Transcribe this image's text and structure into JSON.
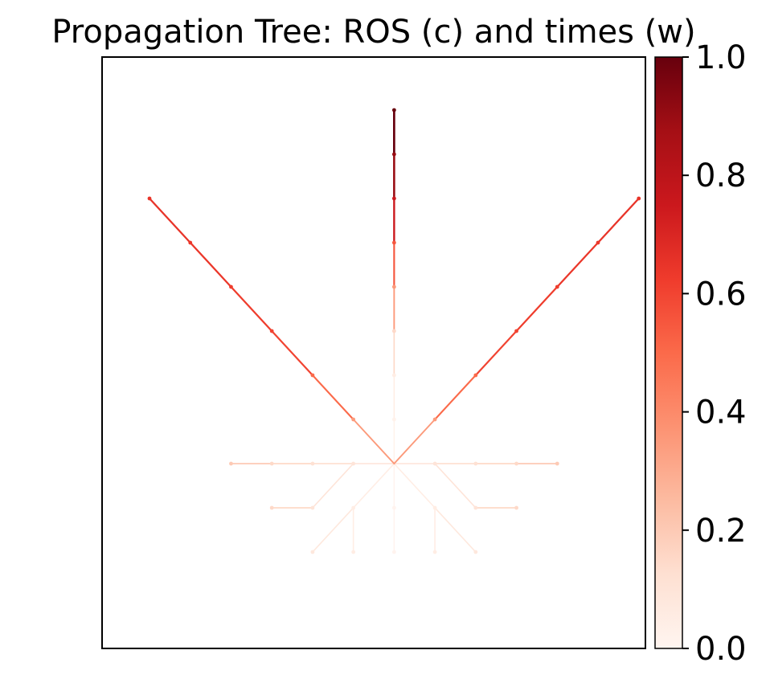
{
  "chart_data": {
    "type": "line",
    "title": "Propagation Tree: ROS (c) and times (w)",
    "xlabel": "",
    "ylabel": "",
    "xlim": [
      -1,
      13
    ],
    "ylim": [
      -1,
      13
    ],
    "axis_ticks_visible": false,
    "grid": false,
    "colormap": "Reds",
    "colorbar": {
      "range": [
        0,
        1
      ],
      "ticks": [
        0.0,
        0.2,
        0.4,
        0.6,
        0.8,
        1.0
      ],
      "tick_labels": [
        "0.0",
        "0.2",
        "0.4",
        "0.6",
        "0.8",
        "1.0"
      ],
      "colormap_stops": [
        "#fff5f0",
        "#fee0d2",
        "#fcbba1",
        "#fc9272",
        "#fb6a4a",
        "#ef3b2c",
        "#cb181d",
        "#a50f15",
        "#67000d"
      ]
    },
    "description": "Directed propagation edges radiating from an ignition node at grid point (6,4); each edge is colored by its ROS value on the Reds colormap.",
    "ignition_node": [
      6,
      4
    ],
    "edges": [
      {
        "x0": 6,
        "y0": 4,
        "x1": 6,
        "y1": 3,
        "c": 0.01
      },
      {
        "x0": 6,
        "y0": 3,
        "x1": 6,
        "y1": 2,
        "c": 0.01
      },
      {
        "x0": 6,
        "y0": 4,
        "x1": 5,
        "y1": 3,
        "c": 0.05
      },
      {
        "x0": 5,
        "y0": 3,
        "x1": 4,
        "y1": 2,
        "c": 0.08
      },
      {
        "x0": 6,
        "y0": 4,
        "x1": 7,
        "y1": 3,
        "c": 0.05
      },
      {
        "x0": 7,
        "y0": 3,
        "x1": 8,
        "y1": 2,
        "c": 0.08
      },
      {
        "x0": 5,
        "y0": 3,
        "x1": 5,
        "y1": 2,
        "c": 0.05
      },
      {
        "x0": 7,
        "y0": 3,
        "x1": 7,
        "y1": 2,
        "c": 0.05
      },
      {
        "x0": 6,
        "y0": 4,
        "x1": 5,
        "y1": 4,
        "c": 0.1
      },
      {
        "x0": 5,
        "y0": 4,
        "x1": 4,
        "y1": 4,
        "c": 0.12
      },
      {
        "x0": 4,
        "y0": 4,
        "x1": 3,
        "y1": 4,
        "c": 0.15
      },
      {
        "x0": 3,
        "y0": 4,
        "x1": 2,
        "y1": 4,
        "c": 0.2
      },
      {
        "x0": 6,
        "y0": 4,
        "x1": 7,
        "y1": 4,
        "c": 0.1
      },
      {
        "x0": 7,
        "y0": 4,
        "x1": 8,
        "y1": 4,
        "c": 0.12
      },
      {
        "x0": 8,
        "y0": 4,
        "x1": 9,
        "y1": 4,
        "c": 0.15
      },
      {
        "x0": 9,
        "y0": 4,
        "x1": 10,
        "y1": 4,
        "c": 0.2
      },
      {
        "x0": 5,
        "y0": 4,
        "x1": 4,
        "y1": 3,
        "c": 0.1
      },
      {
        "x0": 4,
        "y0": 3,
        "x1": 3,
        "y1": 3,
        "c": 0.15
      },
      {
        "x0": 7,
        "y0": 4,
        "x1": 8,
        "y1": 3,
        "c": 0.1
      },
      {
        "x0": 8,
        "y0": 3,
        "x1": 9,
        "y1": 3,
        "c": 0.15
      },
      {
        "x0": 6,
        "y0": 4,
        "x1": 6,
        "y1": 5,
        "c": 0.02
      },
      {
        "x0": 6,
        "y0": 5,
        "x1": 6,
        "y1": 6,
        "c": 0.05
      },
      {
        "x0": 6,
        "y0": 6,
        "x1": 6,
        "y1": 7,
        "c": 0.15
      },
      {
        "x0": 6,
        "y0": 7,
        "x1": 6,
        "y1": 8,
        "c": 0.35
      },
      {
        "x0": 6,
        "y0": 8,
        "x1": 6,
        "y1": 9,
        "c": 0.55
      },
      {
        "x0": 6,
        "y0": 9,
        "x1": 6,
        "y1": 10,
        "c": 0.75
      },
      {
        "x0": 6,
        "y0": 10,
        "x1": 6,
        "y1": 11,
        "c": 0.9
      },
      {
        "x0": 6,
        "y0": 11,
        "x1": 6,
        "y1": 12,
        "c": 1.0
      },
      {
        "x0": 6,
        "y0": 4,
        "x1": 5,
        "y1": 5,
        "c": 0.35
      },
      {
        "x0": 5,
        "y0": 5,
        "x1": 4,
        "y1": 6,
        "c": 0.5
      },
      {
        "x0": 4,
        "y0": 6,
        "x1": 3,
        "y1": 7,
        "c": 0.6
      },
      {
        "x0": 3,
        "y0": 7,
        "x1": 2,
        "y1": 8,
        "c": 0.62
      },
      {
        "x0": 2,
        "y0": 8,
        "x1": 1,
        "y1": 9,
        "c": 0.64
      },
      {
        "x0": 1,
        "y0": 9,
        "x1": 0,
        "y1": 10,
        "c": 0.65
      },
      {
        "x0": 6,
        "y0": 4,
        "x1": 7,
        "y1": 5,
        "c": 0.35
      },
      {
        "x0": 7,
        "y0": 5,
        "x1": 8,
        "y1": 6,
        "c": 0.5
      },
      {
        "x0": 8,
        "y0": 6,
        "x1": 9,
        "y1": 7,
        "c": 0.6
      },
      {
        "x0": 9,
        "y0": 7,
        "x1": 10,
        "y1": 8,
        "c": 0.62
      },
      {
        "x0": 10,
        "y0": 8,
        "x1": 11,
        "y1": 9,
        "c": 0.64
      },
      {
        "x0": 11,
        "y0": 9,
        "x1": 12,
        "y1": 10,
        "c": 0.65
      }
    ]
  }
}
